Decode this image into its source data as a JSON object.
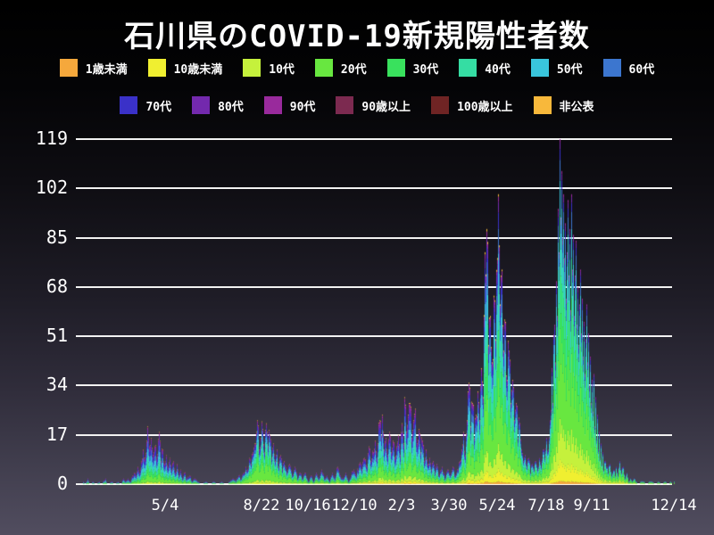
{
  "title": "石川県のCOVID-19新規陽性者数",
  "chart_data": {
    "type": "bar",
    "stacked": true,
    "title": "石川県のCOVID-19新規陽性者数",
    "xlabel": "",
    "ylabel": "",
    "y_axis": {
      "max": 119,
      "ticks": [
        0,
        17,
        34,
        51,
        68,
        85,
        102,
        119
      ]
    },
    "x_axis": {
      "ticks": [
        {
          "label": "5/4",
          "day": 100
        },
        {
          "label": "8/22",
          "day": 208
        },
        {
          "label": "10/16",
          "day": 260
        },
        {
          "label": "12/10",
          "day": 312
        },
        {
          "label": "2/3",
          "day": 365
        },
        {
          "label": "3/30",
          "day": 418
        },
        {
          "label": "5/24",
          "day": 472
        },
        {
          "label": "7/18",
          "day": 527
        },
        {
          "label": "9/11",
          "day": 578
        },
        {
          "label": "12/14",
          "day": 670
        }
      ]
    },
    "groups": [
      {
        "name": "1歳未満",
        "color": "#f5a83c"
      },
      {
        "name": "10歳未満",
        "color": "#f0ef30"
      },
      {
        "name": "10代",
        "color": "#c5f13c"
      },
      {
        "name": "20代",
        "color": "#68e740"
      },
      {
        "name": "30代",
        "color": "#39e15d"
      },
      {
        "name": "40代",
        "color": "#35dda3"
      },
      {
        "name": "50代",
        "color": "#39c5dc"
      },
      {
        "name": "60代",
        "color": "#3c76cf"
      },
      {
        "name": "70代",
        "color": "#3a31c8"
      },
      {
        "name": "80代",
        "color": "#7329ad"
      },
      {
        "name": "90代",
        "color": "#992a9c"
      },
      {
        "name": "90歳以上",
        "color": "#7c2a50"
      },
      {
        "name": "100歳以上",
        "color": "#6f2424"
      },
      {
        "name": "非公表",
        "color": "#f8b83b"
      }
    ],
    "legend_split": 8,
    "age_profile_keyframes": [
      {
        "day": 0,
        "shares": [
          0,
          1,
          3,
          12,
          12,
          14,
          16,
          14,
          12,
          9,
          4,
          2,
          0,
          1
        ]
      },
      {
        "day": 150,
        "shares": [
          0,
          2,
          4,
          16,
          14,
          14,
          14,
          12,
          10,
          8,
          3,
          2,
          0,
          1
        ]
      },
      {
        "day": 210,
        "shares": [
          0,
          2,
          5,
          28,
          18,
          14,
          11,
          8,
          6,
          4,
          2,
          1,
          0,
          1
        ]
      },
      {
        "day": 280,
        "shares": [
          1,
          3,
          6,
          18,
          14,
          14,
          13,
          11,
          9,
          6,
          3,
          1,
          0,
          1
        ]
      },
      {
        "day": 370,
        "shares": [
          1,
          3,
          6,
          16,
          13,
          14,
          14,
          11,
          9,
          7,
          4,
          1,
          0,
          1
        ]
      },
      {
        "day": 460,
        "shares": [
          1,
          4,
          8,
          22,
          16,
          15,
          12,
          9,
          6,
          4,
          2,
          0,
          0,
          1
        ]
      },
      {
        "day": 542,
        "shares": [
          1,
          6,
          12,
          26,
          19,
          14,
          10,
          6,
          3,
          2,
          1,
          0,
          0,
          0
        ]
      },
      {
        "day": 670,
        "shares": [
          1,
          6,
          12,
          26,
          19,
          14,
          10,
          6,
          3,
          2,
          1,
          0,
          0,
          0
        ]
      }
    ],
    "envelope": [
      [
        0,
        0
      ],
      [
        6,
        0
      ],
      [
        8,
        1
      ],
      [
        10,
        0
      ],
      [
        13,
        2
      ],
      [
        15,
        0
      ],
      [
        19,
        1
      ],
      [
        21,
        0
      ],
      [
        26,
        1
      ],
      [
        28,
        0
      ],
      [
        33,
        2
      ],
      [
        35,
        0
      ],
      [
        40,
        1
      ],
      [
        43,
        0
      ],
      [
        47,
        1
      ],
      [
        50,
        0
      ],
      [
        53,
        2
      ],
      [
        55,
        1
      ],
      [
        58,
        2
      ],
      [
        61,
        1
      ],
      [
        63,
        3
      ],
      [
        65,
        4
      ],
      [
        67,
        3
      ],
      [
        69,
        6
      ],
      [
        71,
        4
      ],
      [
        73,
        8
      ],
      [
        75,
        12
      ],
      [
        77,
        9
      ],
      [
        79,
        15
      ],
      [
        80,
        20
      ],
      [
        82,
        13
      ],
      [
        84,
        16
      ],
      [
        86,
        10
      ],
      [
        88,
        13
      ],
      [
        90,
        9
      ],
      [
        93,
        18
      ],
      [
        95,
        8
      ],
      [
        97,
        12
      ],
      [
        99,
        7
      ],
      [
        101,
        10
      ],
      [
        103,
        6
      ],
      [
        105,
        9
      ],
      [
        107,
        5
      ],
      [
        109,
        8
      ],
      [
        111,
        4
      ],
      [
        113,
        7
      ],
      [
        115,
        3
      ],
      [
        117,
        5
      ],
      [
        119,
        2
      ],
      [
        121,
        4
      ],
      [
        124,
        2
      ],
      [
        127,
        3
      ],
      [
        130,
        1
      ],
      [
        133,
        2
      ],
      [
        136,
        1
      ],
      [
        140,
        0
      ],
      [
        145,
        1
      ],
      [
        149,
        0
      ],
      [
        154,
        1
      ],
      [
        158,
        0
      ],
      [
        163,
        1
      ],
      [
        167,
        0
      ],
      [
        172,
        1
      ],
      [
        176,
        2
      ],
      [
        179,
        1
      ],
      [
        182,
        3
      ],
      [
        185,
        2
      ],
      [
        188,
        4
      ],
      [
        190,
        6
      ],
      [
        192,
        5
      ],
      [
        194,
        9
      ],
      [
        196,
        7
      ],
      [
        198,
        11
      ],
      [
        200,
        14
      ],
      [
        202,
        18
      ],
      [
        203,
        22
      ],
      [
        205,
        12
      ],
      [
        207,
        16
      ],
      [
        209,
        19
      ],
      [
        211,
        11
      ],
      [
        213,
        21
      ],
      [
        215,
        13
      ],
      [
        217,
        17
      ],
      [
        219,
        9
      ],
      [
        221,
        14
      ],
      [
        223,
        8
      ],
      [
        225,
        12
      ],
      [
        227,
        6
      ],
      [
        229,
        10
      ],
      [
        231,
        5
      ],
      [
        233,
        8
      ],
      [
        236,
        4
      ],
      [
        239,
        7
      ],
      [
        242,
        3
      ],
      [
        245,
        6
      ],
      [
        248,
        2
      ],
      [
        251,
        4
      ],
      [
        254,
        2
      ],
      [
        257,
        4
      ],
      [
        260,
        1
      ],
      [
        263,
        3
      ],
      [
        266,
        1
      ],
      [
        269,
        4
      ],
      [
        272,
        2
      ],
      [
        275,
        5
      ],
      [
        278,
        2
      ],
      [
        281,
        3
      ],
      [
        284,
        1
      ],
      [
        287,
        4
      ],
      [
        290,
        2
      ],
      [
        293,
        6
      ],
      [
        296,
        3
      ],
      [
        299,
        2
      ],
      [
        302,
        4
      ],
      [
        305,
        1
      ],
      [
        308,
        3
      ],
      [
        311,
        5
      ],
      [
        314,
        3
      ],
      [
        317,
        7
      ],
      [
        320,
        5
      ],
      [
        323,
        9
      ],
      [
        326,
        6
      ],
      [
        328,
        13
      ],
      [
        330,
        8
      ],
      [
        333,
        11
      ],
      [
        335,
        15
      ],
      [
        337,
        9
      ],
      [
        340,
        22
      ],
      [
        342,
        17
      ],
      [
        343,
        24
      ],
      [
        345,
        12
      ],
      [
        347,
        16
      ],
      [
        349,
        10
      ],
      [
        351,
        18
      ],
      [
        353,
        11
      ],
      [
        355,
        15
      ],
      [
        357,
        9
      ],
      [
        359,
        13
      ],
      [
        361,
        17
      ],
      [
        363,
        10
      ],
      [
        365,
        21
      ],
      [
        367,
        14
      ],
      [
        368,
        30
      ],
      [
        370,
        18
      ],
      [
        372,
        24
      ],
      [
        374,
        28
      ],
      [
        376,
        16
      ],
      [
        378,
        22
      ],
      [
        380,
        26
      ],
      [
        382,
        14
      ],
      [
        384,
        19
      ],
      [
        386,
        11
      ],
      [
        388,
        15
      ],
      [
        390,
        8
      ],
      [
        392,
        12
      ],
      [
        394,
        7
      ],
      [
        396,
        9
      ],
      [
        398,
        5
      ],
      [
        400,
        8
      ],
      [
        402,
        4
      ],
      [
        404,
        7
      ],
      [
        407,
        3
      ],
      [
        410,
        6
      ],
      [
        413,
        2
      ],
      [
        416,
        5
      ],
      [
        419,
        3
      ],
      [
        422,
        6
      ],
      [
        425,
        3
      ],
      [
        428,
        5
      ],
      [
        430,
        8
      ],
      [
        432,
        12
      ],
      [
        434,
        18
      ],
      [
        436,
        10
      ],
      [
        438,
        22
      ],
      [
        440,
        35
      ],
      [
        442,
        20
      ],
      [
        444,
        28
      ],
      [
        446,
        16
      ],
      [
        448,
        24
      ],
      [
        450,
        32
      ],
      [
        452,
        22
      ],
      [
        454,
        40
      ],
      [
        456,
        30
      ],
      [
        458,
        80
      ],
      [
        460,
        88
      ],
      [
        462,
        48
      ],
      [
        464,
        58
      ],
      [
        466,
        42
      ],
      [
        468,
        65
      ],
      [
        470,
        50
      ],
      [
        472,
        78
      ],
      [
        473,
        100
      ],
      [
        475,
        62
      ],
      [
        477,
        74
      ],
      [
        479,
        46
      ],
      [
        481,
        56
      ],
      [
        483,
        36
      ],
      [
        485,
        46
      ],
      [
        487,
        28
      ],
      [
        489,
        36
      ],
      [
        491,
        22
      ],
      [
        493,
        28
      ],
      [
        495,
        16
      ],
      [
        497,
        21
      ],
      [
        499,
        12
      ],
      [
        501,
        8
      ],
      [
        503,
        10
      ],
      [
        505,
        6
      ],
      [
        507,
        9
      ],
      [
        509,
        4
      ],
      [
        511,
        7
      ],
      [
        513,
        5
      ],
      [
        515,
        8
      ],
      [
        517,
        5
      ],
      [
        519,
        9
      ],
      [
        521,
        6
      ],
      [
        523,
        12
      ],
      [
        525,
        9
      ],
      [
        527,
        16
      ],
      [
        529,
        12
      ],
      [
        531,
        22
      ],
      [
        533,
        40
      ],
      [
        534,
        28
      ],
      [
        536,
        55
      ],
      [
        537,
        42
      ],
      [
        538,
        70
      ],
      [
        539,
        58
      ],
      [
        540,
        95
      ],
      [
        541,
        80
      ],
      [
        542,
        119
      ],
      [
        543,
        92
      ],
      [
        544,
        108
      ],
      [
        545,
        85
      ],
      [
        546,
        100
      ],
      [
        547,
        78
      ],
      [
        548,
        90
      ],
      [
        549,
        64
      ],
      [
        550,
        80
      ],
      [
        551,
        98
      ],
      [
        552,
        72
      ],
      [
        553,
        88
      ],
      [
        554,
        60
      ],
      [
        555,
        100
      ],
      [
        556,
        74
      ],
      [
        557,
        86
      ],
      [
        558,
        58
      ],
      [
        559,
        72
      ],
      [
        560,
        84
      ],
      [
        561,
        55
      ],
      [
        562,
        68
      ],
      [
        563,
        48
      ],
      [
        564,
        62
      ],
      [
        565,
        74
      ],
      [
        566,
        52
      ],
      [
        567,
        64
      ],
      [
        568,
        44
      ],
      [
        569,
        56
      ],
      [
        570,
        38
      ],
      [
        571,
        50
      ],
      [
        572,
        62
      ],
      [
        573,
        42
      ],
      [
        574,
        52
      ],
      [
        575,
        34
      ],
      [
        576,
        44
      ],
      [
        577,
        28
      ],
      [
        578,
        36
      ],
      [
        579,
        25
      ],
      [
        580,
        38
      ],
      [
        581,
        20
      ],
      [
        582,
        30
      ],
      [
        583,
        16
      ],
      [
        584,
        24
      ],
      [
        585,
        12
      ],
      [
        586,
        18
      ],
      [
        587,
        9
      ],
      [
        588,
        14
      ],
      [
        589,
        7
      ],
      [
        590,
        11
      ],
      [
        591,
        5
      ],
      [
        592,
        8
      ],
      [
        594,
        6
      ],
      [
        596,
        4
      ],
      [
        598,
        7
      ],
      [
        600,
        3
      ],
      [
        602,
        5
      ],
      [
        604,
        3
      ],
      [
        605,
        6
      ],
      [
        607,
        3
      ],
      [
        609,
        8
      ],
      [
        611,
        4
      ],
      [
        613,
        6
      ],
      [
        615,
        2
      ],
      [
        617,
        4
      ],
      [
        619,
        1
      ],
      [
        621,
        2
      ],
      [
        623,
        1
      ],
      [
        625,
        2
      ],
      [
        627,
        1
      ],
      [
        630,
        0
      ],
      [
        633,
        1
      ],
      [
        636,
        1
      ],
      [
        639,
        0
      ],
      [
        642,
        1
      ],
      [
        645,
        1
      ],
      [
        649,
        0
      ],
      [
        652,
        1
      ],
      [
        656,
        0
      ],
      [
        660,
        1
      ],
      [
        663,
        0
      ],
      [
        666,
        1
      ],
      [
        668,
        0
      ],
      [
        670,
        1
      ]
    ]
  },
  "colors": {
    "text": "#ffffff",
    "gridline": "#f2f2f2",
    "background_top": "#000000",
    "background_bottom": "#514d5f"
  }
}
